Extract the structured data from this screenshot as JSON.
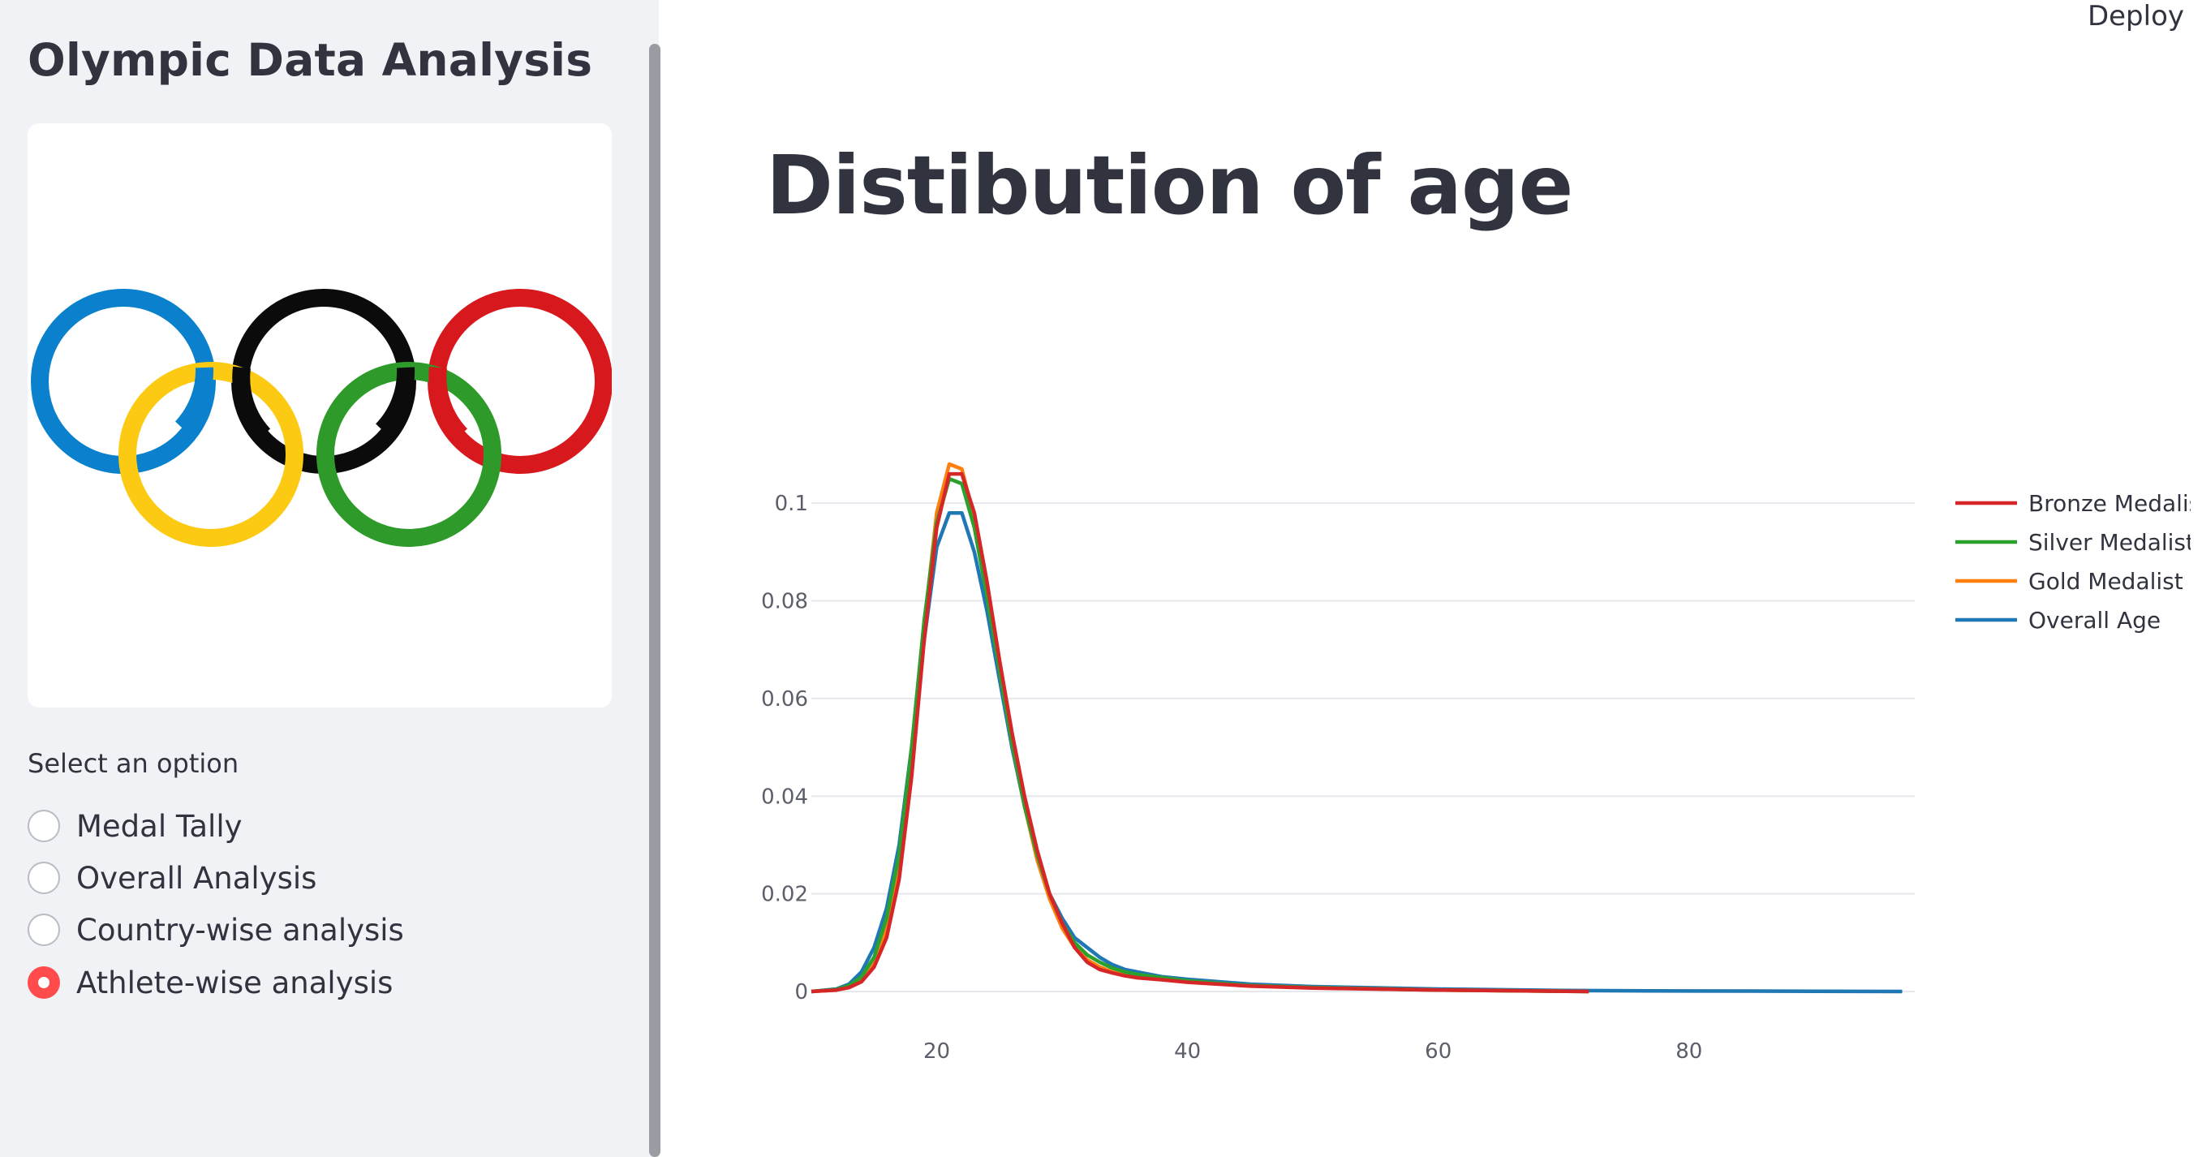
{
  "sidebar": {
    "title": "Olympic Data Analysis",
    "logo_name": "olympic-rings",
    "select_label": "Select an option",
    "options": [
      {
        "label": "Medal Tally",
        "selected": false
      },
      {
        "label": "Overall Analysis",
        "selected": false
      },
      {
        "label": "Country-wise analysis",
        "selected": false
      },
      {
        "label": "Athlete-wise analysis",
        "selected": true
      }
    ]
  },
  "header": {
    "deploy_label": "Deploy"
  },
  "main": {
    "title": "Distibution of age"
  },
  "colors": {
    "accent": "#ff4b4b",
    "sidebar_bg": "#f0f2f6",
    "text": "#31333f"
  },
  "chart_data": {
    "type": "line",
    "title": "",
    "xlabel": "",
    "ylabel": "",
    "xlim": [
      10,
      98
    ],
    "ylim": [
      0,
      0.11
    ],
    "x_ticks": [
      20,
      40,
      60,
      80
    ],
    "y_ticks": [
      0,
      0.02,
      0.04,
      0.06,
      0.08,
      0.1
    ],
    "y_tick_labels": [
      "0",
      "0.02",
      "0.04",
      "0.06",
      "0.08",
      "0.1"
    ],
    "grid": true,
    "legend_position": "top-right",
    "series": [
      {
        "name": "Overall Age",
        "color": "#1f77b4",
        "x": [
          10,
          12,
          13,
          14,
          15,
          16,
          17,
          18,
          19,
          20,
          21,
          22,
          23,
          24,
          25,
          26,
          27,
          28,
          29,
          30,
          31,
          32,
          33,
          34,
          35,
          36,
          38,
          40,
          45,
          50,
          60,
          70,
          80,
          90,
          97
        ],
        "y": [
          0,
          0.0005,
          0.0015,
          0.004,
          0.009,
          0.017,
          0.03,
          0.05,
          0.072,
          0.091,
          0.098,
          0.098,
          0.09,
          0.078,
          0.064,
          0.05,
          0.038,
          0.028,
          0.02,
          0.015,
          0.011,
          0.009,
          0.007,
          0.0055,
          0.0045,
          0.004,
          0.003,
          0.0025,
          0.0015,
          0.001,
          0.0005,
          0.0002,
          0.0001,
          5e-05,
          0
        ]
      },
      {
        "name": "Gold Medalist",
        "color": "#ff7f0e",
        "x": [
          10,
          12,
          13,
          14,
          15,
          16,
          17,
          18,
          19,
          20,
          21,
          22,
          23,
          24,
          25,
          26,
          27,
          28,
          29,
          30,
          31,
          32,
          33,
          34,
          35,
          36,
          38,
          40,
          45,
          50,
          60,
          72
        ],
        "y": [
          0,
          0.0003,
          0.001,
          0.0025,
          0.006,
          0.013,
          0.026,
          0.048,
          0.075,
          0.098,
          0.108,
          0.107,
          0.097,
          0.082,
          0.066,
          0.051,
          0.038,
          0.027,
          0.019,
          0.013,
          0.009,
          0.0065,
          0.005,
          0.004,
          0.0035,
          0.003,
          0.0025,
          0.002,
          0.0012,
          0.0008,
          0.0003,
          0
        ]
      },
      {
        "name": "Silver Medalist",
        "color": "#2ca02c",
        "x": [
          10,
          12,
          13,
          14,
          15,
          16,
          17,
          18,
          19,
          20,
          21,
          22,
          23,
          24,
          25,
          26,
          27,
          28,
          29,
          30,
          31,
          32,
          33,
          34,
          35,
          36,
          38,
          40,
          45,
          50,
          60,
          72
        ],
        "y": [
          0,
          0.0004,
          0.0012,
          0.003,
          0.007,
          0.015,
          0.028,
          0.05,
          0.076,
          0.096,
          0.105,
          0.104,
          0.095,
          0.081,
          0.066,
          0.051,
          0.038,
          0.028,
          0.02,
          0.014,
          0.01,
          0.0075,
          0.006,
          0.0048,
          0.004,
          0.0035,
          0.0028,
          0.0022,
          0.0012,
          0.0008,
          0.0003,
          0
        ]
      },
      {
        "name": "Bronze Medalist",
        "color": "#d62728",
        "x": [
          10,
          12,
          13,
          14,
          15,
          16,
          17,
          18,
          19,
          20,
          21,
          22,
          23,
          24,
          25,
          26,
          27,
          28,
          29,
          30,
          31,
          32,
          33,
          34,
          35,
          36,
          38,
          40,
          45,
          50,
          60,
          72
        ],
        "y": [
          0,
          0.0003,
          0.0008,
          0.002,
          0.005,
          0.011,
          0.023,
          0.044,
          0.072,
          0.095,
          0.106,
          0.106,
          0.098,
          0.084,
          0.068,
          0.053,
          0.04,
          0.029,
          0.02,
          0.014,
          0.009,
          0.006,
          0.0045,
          0.0038,
          0.0032,
          0.0028,
          0.0024,
          0.0019,
          0.0011,
          0.0007,
          0.0003,
          0
        ]
      }
    ],
    "legend_order": [
      "Bronze Medalist",
      "Silver Medalist",
      "Gold Medalist",
      "Overall Age"
    ]
  }
}
